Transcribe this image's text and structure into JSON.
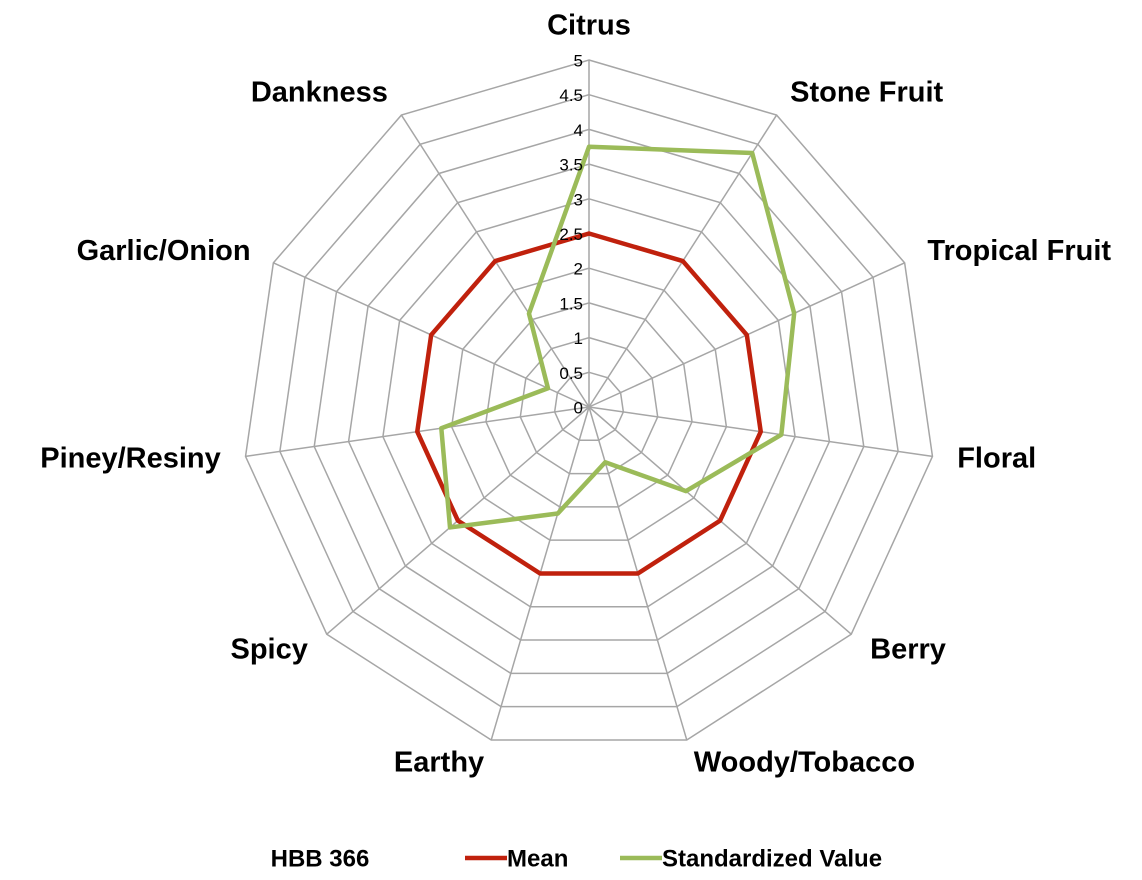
{
  "chart_data": {
    "type": "radar",
    "legend_title": "HBB 366",
    "categories": [
      "Citrus",
      "Stone Fruit",
      "Tropical Fruit",
      "Floral",
      "Berry",
      "Woody/Tobacco",
      "Earthy",
      "Spicy",
      "Piney/Resiny",
      "Garlic/Onion",
      "Dankness"
    ],
    "series": [
      {
        "name": "Mean",
        "color": "#c0210d",
        "values": [
          2.5,
          2.5,
          2.5,
          2.5,
          2.5,
          2.5,
          2.5,
          2.5,
          2.5,
          2.5,
          2.5
        ]
      },
      {
        "name": "Standardized Value",
        "color": "#9bbb59",
        "values": [
          3.75,
          4.35,
          3.25,
          2.8,
          1.85,
          0.83,
          1.6,
          2.65,
          2.15,
          0.65,
          1.6
        ]
      }
    ],
    "ylim": [
      0,
      5
    ],
    "yticks": [
      0,
      0.5,
      1,
      1.5,
      2,
      2.5,
      3,
      3.5,
      4,
      4.5,
      5
    ],
    "grid": true,
    "legend": "bottom"
  }
}
